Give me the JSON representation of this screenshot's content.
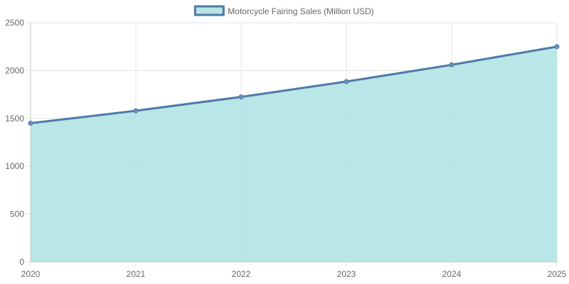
{
  "colors": {
    "fill": "#b5e5e5",
    "line": "#4e79a7",
    "point": "#6b8fbd",
    "grid": "#e5e5e5",
    "text": "#666666"
  },
  "chart_data": {
    "type": "area",
    "x": [
      "2020",
      "2021",
      "2022",
      "2023",
      "2024",
      "2025"
    ],
    "series": [
      {
        "name": "Motorcycle Fairing Sales (Million USD)",
        "values": [
          1450,
          1580,
          1725,
          1885,
          2060,
          2250
        ]
      }
    ],
    "ylim": [
      0,
      2500
    ],
    "yticks": [
      0,
      500,
      1000,
      1500,
      2000,
      2500
    ],
    "grid": true,
    "legend": "top-center"
  }
}
